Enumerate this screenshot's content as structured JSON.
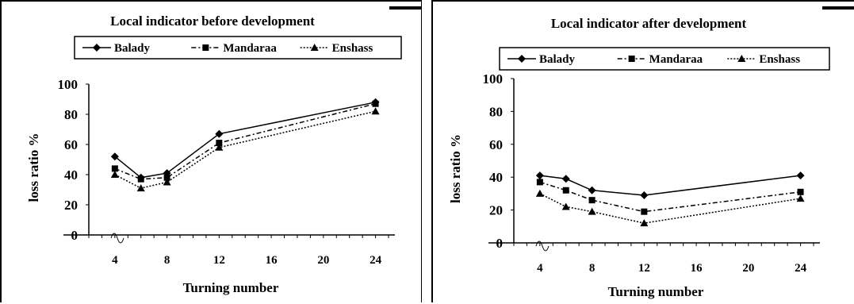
{
  "chart_data": [
    {
      "type": "line",
      "title": "Local indicator before development",
      "xlabel": "Turning number",
      "ylabel": "loss ratio %",
      "x_ticks": [
        "4",
        "8",
        "12",
        "16",
        "20",
        "24"
      ],
      "y_ticks": [
        "0",
        "20",
        "40",
        "60",
        "80",
        "100"
      ],
      "ylim": [
        0,
        100
      ],
      "xlim": [
        0,
        25
      ],
      "legend_position": "top",
      "series": [
        {
          "name": "Balady",
          "marker": "diamond",
          "dash": "solid",
          "x": [
            4,
            6,
            8,
            12,
            24
          ],
          "y": [
            52,
            38,
            41,
            67,
            88
          ]
        },
        {
          "name": "Mandaraa",
          "marker": "square",
          "dash": "dashdot",
          "x": [
            4,
            6,
            8,
            12,
            24
          ],
          "y": [
            44,
            37,
            38,
            61,
            87
          ]
        },
        {
          "name": "Enshass",
          "marker": "triangle",
          "dash": "dotted",
          "x": [
            4,
            6,
            8,
            12,
            24
          ],
          "y": [
            40,
            31,
            35,
            58,
            82
          ]
        }
      ]
    },
    {
      "type": "line",
      "title": "Local indicator after development",
      "xlabel": "Turning number",
      "ylabel": "loss ratio %",
      "x_ticks": [
        "4",
        "8",
        "12",
        "16",
        "20",
        "24"
      ],
      "y_ticks": [
        "0",
        "20",
        "40",
        "60",
        "80",
        "100"
      ],
      "ylim": [
        0,
        100
      ],
      "xlim": [
        0,
        25
      ],
      "legend_position": "top",
      "series": [
        {
          "name": "Balady",
          "marker": "diamond",
          "dash": "solid",
          "x": [
            4,
            6,
            8,
            12,
            24
          ],
          "y": [
            41,
            39,
            32,
            29,
            41
          ]
        },
        {
          "name": "Mandaraa",
          "marker": "square",
          "dash": "dashdot",
          "x": [
            4,
            6,
            8,
            12,
            24
          ],
          "y": [
            37,
            32,
            26,
            19,
            31
          ]
        },
        {
          "name": "Enshass",
          "marker": "triangle",
          "dash": "dotted",
          "x": [
            4,
            6,
            8,
            12,
            24
          ],
          "y": [
            30,
            22,
            19,
            12,
            27
          ]
        }
      ]
    }
  ]
}
